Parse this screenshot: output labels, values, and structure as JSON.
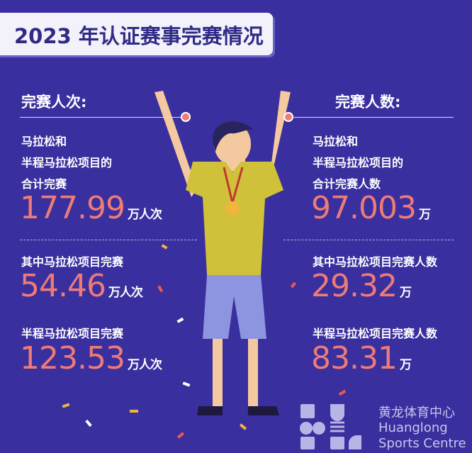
{
  "title": "2023 年认证赛事完赛情况",
  "left": {
    "heading": "完赛人次:",
    "total_lines": [
      "马拉松和",
      "半程马拉松项目的",
      "合计完赛"
    ],
    "total_value": "177.99",
    "total_unit": "万人次",
    "marathon_label": "其中马拉松项目完赛",
    "marathon_value": "54.46",
    "marathon_unit": "万人次",
    "half_label": "半程马拉松项目完赛",
    "half_value": "123.53",
    "half_unit": "万人次"
  },
  "right": {
    "heading": "完赛人数:",
    "total_lines": [
      "马拉松和",
      "半程马拉松项目的",
      "合计完赛人数"
    ],
    "total_value": "97.003",
    "total_unit": "万",
    "marathon_label": "其中马拉松项目完赛人数",
    "marathon_value": "29.32",
    "marathon_unit": "万",
    "half_label": "半程马拉松项目完赛人数",
    "half_value": "83.31",
    "half_unit": "万"
  },
  "logo": {
    "name_zh": "黄龙体育中心",
    "name_en_1": "Huanglong",
    "name_en_2": "Sports Centre"
  },
  "colors": {
    "background": "#3a2f9e",
    "accent": "#ee7b76",
    "title_text": "#2f2a86"
  }
}
